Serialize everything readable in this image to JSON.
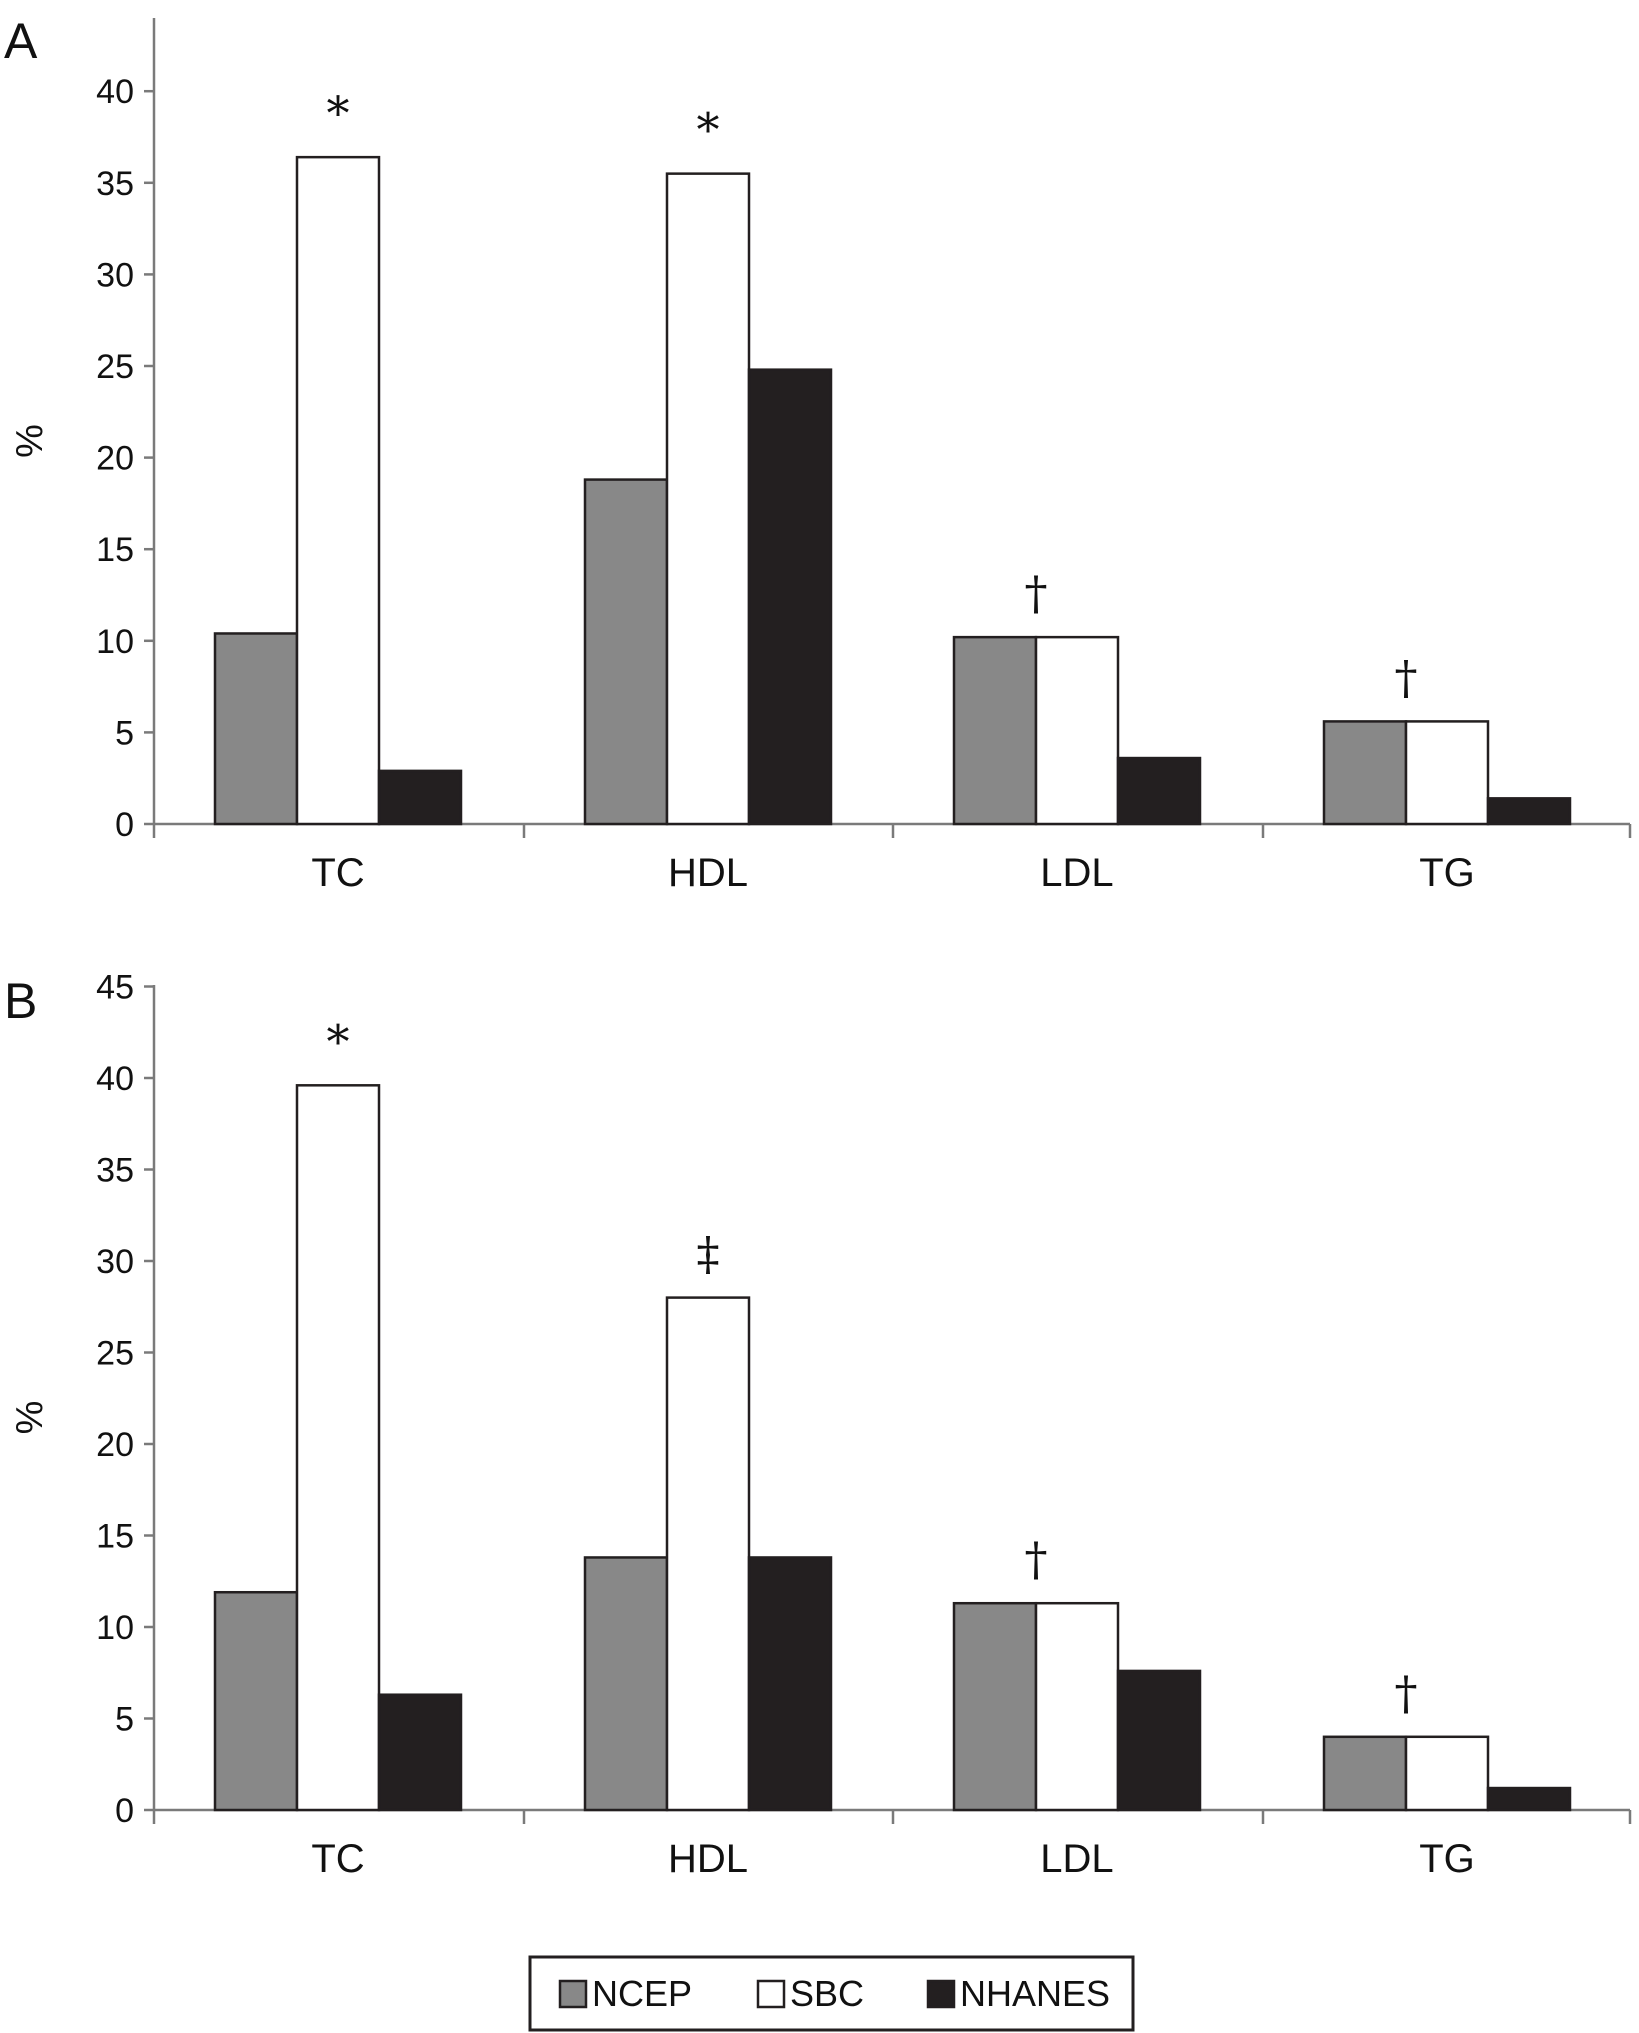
{
  "legend": [
    {
      "label": "NCEP",
      "color": "#888888"
    },
    {
      "label": "SBC",
      "color": "#ffffff"
    },
    {
      "label": "NHANES",
      "color": "#231f20"
    }
  ],
  "chart_data": [
    {
      "type": "bar",
      "panel_label": "A",
      "ylabel": "%",
      "xlabel": "",
      "ylim": [
        0,
        43
      ],
      "yticks": [
        0,
        5,
        10,
        15,
        20,
        25,
        30,
        35,
        40
      ],
      "categories": [
        "TC",
        "HDL",
        "LDL",
        "TG"
      ],
      "series": [
        {
          "name": "NCEP",
          "values": [
            10.4,
            18.8,
            10.2,
            5.6
          ]
        },
        {
          "name": "SBC",
          "values": [
            36.4,
            35.5,
            10.2,
            5.6
          ]
        },
        {
          "name": "NHANES",
          "values": [
            2.9,
            24.8,
            3.6,
            1.4
          ]
        }
      ],
      "annotations": [
        "*",
        "*",
        "†",
        "†"
      ],
      "grid": false
    },
    {
      "type": "bar",
      "panel_label": "B",
      "ylabel": "%",
      "xlabel": "",
      "ylim": [
        0,
        45
      ],
      "yticks": [
        0,
        5,
        10,
        15,
        20,
        25,
        30,
        35,
        40,
        45
      ],
      "categories": [
        "TC",
        "HDL",
        "LDL",
        "TG"
      ],
      "series": [
        {
          "name": "NCEP",
          "values": [
            11.9,
            13.8,
            11.3,
            4.0
          ]
        },
        {
          "name": "SBC",
          "values": [
            39.6,
            28.0,
            11.3,
            4.0
          ]
        },
        {
          "name": "NHANES",
          "values": [
            6.3,
            13.8,
            7.6,
            1.2
          ]
        }
      ],
      "annotations": [
        "*",
        "‡",
        "†",
        "†"
      ],
      "grid": false
    }
  ]
}
